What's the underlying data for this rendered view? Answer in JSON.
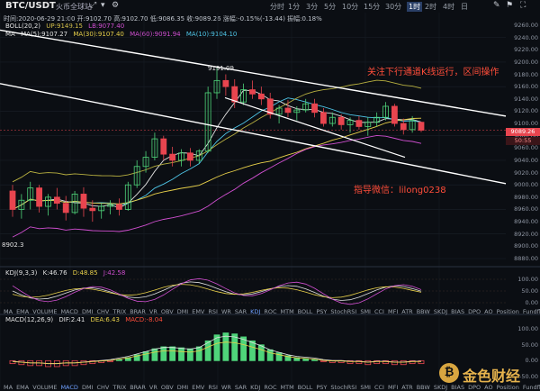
{
  "toolbar": {
    "pair": "BTC/USDT",
    "exchange": "火币全球站",
    "icons": [
      "expand-icon",
      "chevron-down-icon",
      "settings-icon",
      "drawing-icon",
      "indicator-icon",
      "fullscreen-icon"
    ],
    "timeframes": [
      "分时",
      "1分",
      "3分",
      "5分",
      "10分",
      "15分",
      "30分",
      "1时",
      "2时",
      "4时",
      "日"
    ],
    "active_timeframe": "1时"
  },
  "ohlc_line": "时间:2020-06-29 21:00  开:9102.70  高:9102.70  低:9086.35  收:9089.26  涨幅:-0.15%(-13.44)  振幅:0.18%",
  "boll": {
    "label": "BOLL(20,2)",
    "up": "UP:9149.15",
    "lb": "LB:9077.40"
  },
  "ma": {
    "label": "MA",
    "ma5": "MA(5):9107.27",
    "ma30": "MA(30):9107.40",
    "ma60": "MA(60):9091.94",
    "ma10": "MA(10):9104.10"
  },
  "annotations": {
    "high": "9191.09",
    "low": "8902.3",
    "note_channel": "关注下行通道K线运行，区间操作",
    "note_contact": "指导微信：lilong0238"
  },
  "price_axis": [
    "9260.00",
    "9240.00",
    "9220.00",
    "9200.00",
    "9180.00",
    "9160.00",
    "9140.00",
    "9120.00",
    "9100.00",
    "9080.00",
    "9060.00",
    "9040.00",
    "9020.00",
    "9000.00",
    "8980.00",
    "8960.00",
    "8940.00",
    "8920.00",
    "8900.00",
    "8880.00"
  ],
  "price_tags": {
    "last": "9089.26",
    "countdown": "50:55"
  },
  "kdj": {
    "label": "KDJ(9,3,3)",
    "k": "K:46.76",
    "d": "D:48.85",
    "j": "J:42.58",
    "axis": [
      "100.00",
      "50.00",
      "0.00"
    ]
  },
  "tabs1": [
    "MA",
    "EMA",
    "VOLUME",
    "MACD",
    "DMI",
    "CHV",
    "TRIX",
    "BRAR",
    "VR",
    "OBV",
    "DMI",
    "EMV",
    "RSI",
    "WR",
    "SAR",
    "KDJ",
    "ROC",
    "MTM",
    "BOLL",
    "PSY",
    "StochRSI",
    "SMI",
    "CCI",
    "MFI",
    "ATR",
    "BBW",
    "SKDJ",
    "BIAS",
    "DPO",
    "AO",
    "Position",
    "Fundflow"
  ],
  "tabs1_selected": "KDJ",
  "macd": {
    "label": "MACD(12,26,9)",
    "dif": "DIF:2.41",
    "dea": "DEA:6.43",
    "macd": "MACD:-8.04",
    "axis": [
      "100.00",
      "50.00",
      "0.00",
      "-50.00"
    ]
  },
  "tabs2": [
    "MA",
    "EMA",
    "VOLUME",
    "MACD",
    "DMI",
    "CHV",
    "TRIX",
    "BRAR",
    "VR",
    "OBV",
    "DMI",
    "EMV",
    "RSI",
    "WR",
    "SAR",
    "KDJ",
    "ROC",
    "MTM",
    "BOLL",
    "PSY",
    "StochRSI",
    "SMI",
    "CCI",
    "MFI",
    "ATR",
    "BBW",
    "SKDJ",
    "BIAS",
    "DPO",
    "AO",
    "Position",
    "Fundflow"
  ],
  "tabs2_selected": "MACD",
  "watermark": "金色财经",
  "colors": {
    "up": "#4fd47a",
    "down": "#e8454f",
    "bg": "#0b0e13",
    "grid": "#1f2530"
  },
  "candles": [
    {
      "o": 8990,
      "h": 9000,
      "l": 8948,
      "c": 8960
    },
    {
      "o": 8960,
      "h": 8985,
      "l": 8945,
      "c": 8975
    },
    {
      "o": 8975,
      "h": 9005,
      "l": 8960,
      "c": 8995
    },
    {
      "o": 8995,
      "h": 9000,
      "l": 8955,
      "c": 8965
    },
    {
      "o": 8965,
      "h": 8985,
      "l": 8950,
      "c": 8980
    },
    {
      "o": 8980,
      "h": 8995,
      "l": 8960,
      "c": 8970
    },
    {
      "o": 8970,
      "h": 8982,
      "l": 8942,
      "c": 8955
    },
    {
      "o": 8955,
      "h": 8990,
      "l": 8952,
      "c": 8985
    },
    {
      "o": 8985,
      "h": 8996,
      "l": 8948,
      "c": 8962
    },
    {
      "o": 8962,
      "h": 8975,
      "l": 8940,
      "c": 8958
    },
    {
      "o": 8958,
      "h": 8970,
      "l": 8945,
      "c": 8965
    },
    {
      "o": 8965,
      "h": 8975,
      "l": 8952,
      "c": 8968
    },
    {
      "o": 8968,
      "h": 8978,
      "l": 8950,
      "c": 8960
    },
    {
      "o": 8960,
      "h": 9005,
      "l": 8958,
      "c": 9000
    },
    {
      "o": 9000,
      "h": 9040,
      "l": 8995,
      "c": 9030
    },
    {
      "o": 9030,
      "h": 9055,
      "l": 9020,
      "c": 9045
    },
    {
      "o": 9045,
      "h": 9085,
      "l": 9040,
      "c": 9075
    },
    {
      "o": 9075,
      "h": 9080,
      "l": 9040,
      "c": 9050
    },
    {
      "o": 9050,
      "h": 9062,
      "l": 9030,
      "c": 9040
    },
    {
      "o": 9040,
      "h": 9058,
      "l": 9030,
      "c": 9052
    },
    {
      "o": 9052,
      "h": 9060,
      "l": 9030,
      "c": 9040
    },
    {
      "o": 9040,
      "h": 9058,
      "l": 9035,
      "c": 9055
    },
    {
      "o": 9055,
      "h": 9160,
      "l": 9052,
      "c": 9150
    },
    {
      "o": 9150,
      "h": 9191,
      "l": 9140,
      "c": 9170
    },
    {
      "o": 9170,
      "h": 9180,
      "l": 9145,
      "c": 9160
    },
    {
      "o": 9160,
      "h": 9172,
      "l": 9125,
      "c": 9135
    },
    {
      "o": 9135,
      "h": 9165,
      "l": 9130,
      "c": 9155
    },
    {
      "o": 9155,
      "h": 9170,
      "l": 9140,
      "c": 9148
    },
    {
      "o": 9148,
      "h": 9160,
      "l": 9130,
      "c": 9140
    },
    {
      "o": 9140,
      "h": 9150,
      "l": 9108,
      "c": 9115
    },
    {
      "o": 9115,
      "h": 9130,
      "l": 9100,
      "c": 9125
    },
    {
      "o": 9125,
      "h": 9138,
      "l": 9110,
      "c": 9118
    },
    {
      "o": 9118,
      "h": 9128,
      "l": 9105,
      "c": 9122
    },
    {
      "o": 9122,
      "h": 9140,
      "l": 9118,
      "c": 9132
    },
    {
      "o": 9132,
      "h": 9140,
      "l": 9110,
      "c": 9118
    },
    {
      "o": 9118,
      "h": 9125,
      "l": 9095,
      "c": 9100
    },
    {
      "o": 9100,
      "h": 9118,
      "l": 9095,
      "c": 9110
    },
    {
      "o": 9110,
      "h": 9115,
      "l": 9090,
      "c": 9098
    },
    {
      "o": 9098,
      "h": 9110,
      "l": 9085,
      "c": 9105
    },
    {
      "o": 9105,
      "h": 9112,
      "l": 9090,
      "c": 9095
    },
    {
      "o": 9095,
      "h": 9110,
      "l": 9080,
      "c": 9102
    },
    {
      "o": 9102,
      "h": 9118,
      "l": 9095,
      "c": 9110
    },
    {
      "o": 9110,
      "h": 9135,
      "l": 9105,
      "c": 9128
    },
    {
      "o": 9128,
      "h": 9132,
      "l": 9095,
      "c": 9100
    },
    {
      "o": 9100,
      "h": 9108,
      "l": 9082,
      "c": 9090
    },
    {
      "o": 9090,
      "h": 9112,
      "l": 9085,
      "c": 9105
    },
    {
      "o": 9102,
      "h": 9103,
      "l": 9086,
      "c": 9089
    }
  ]
}
